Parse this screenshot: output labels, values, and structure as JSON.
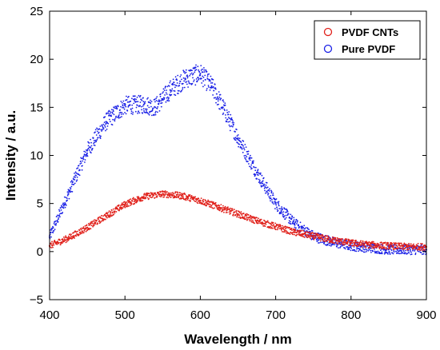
{
  "chart_data": {
    "type": "scatter",
    "xlabel": "Wavelength / nm",
    "ylabel": "Intensity / a.u.",
    "xlim": [
      400,
      900
    ],
    "ylim": [
      -5,
      25
    ],
    "x_ticks": [
      400,
      500,
      600,
      700,
      800,
      900
    ],
    "y_ticks": [
      -5,
      0,
      5,
      10,
      15,
      20,
      25
    ],
    "grid": false,
    "legend_position": "top-right",
    "series": [
      {
        "name": "PVDF CNTs",
        "color": "#e0201a",
        "marker": "circle",
        "x": [
          400,
          425,
          450,
          475,
          500,
          525,
          550,
          575,
          600,
          625,
          650,
          675,
          700,
          725,
          750,
          775,
          800,
          825,
          850,
          875,
          900
        ],
        "y": [
          0.6,
          1.4,
          2.5,
          3.7,
          4.9,
          5.7,
          6.0,
          5.8,
          5.3,
          4.6,
          3.9,
          3.2,
          2.6,
          2.0,
          1.6,
          1.2,
          0.9,
          0.7,
          0.6,
          0.5,
          0.5
        ]
      },
      {
        "name": "Pure PVDF",
        "color": "#1a20e6",
        "marker": "circle",
        "x": [
          400,
          425,
          450,
          475,
          500,
          525,
          540,
          560,
          580,
          600,
          615,
          630,
          650,
          675,
          700,
          725,
          750,
          775,
          800,
          825,
          850,
          875,
          900
        ],
        "y": [
          1.5,
          6.0,
          10.5,
          13.5,
          15.2,
          15.3,
          15.0,
          16.8,
          18.0,
          18.5,
          17.2,
          15.0,
          11.8,
          8.2,
          5.0,
          2.9,
          1.6,
          1.0,
          0.6,
          0.4,
          0.2,
          0.2,
          0.2
        ]
      }
    ]
  }
}
